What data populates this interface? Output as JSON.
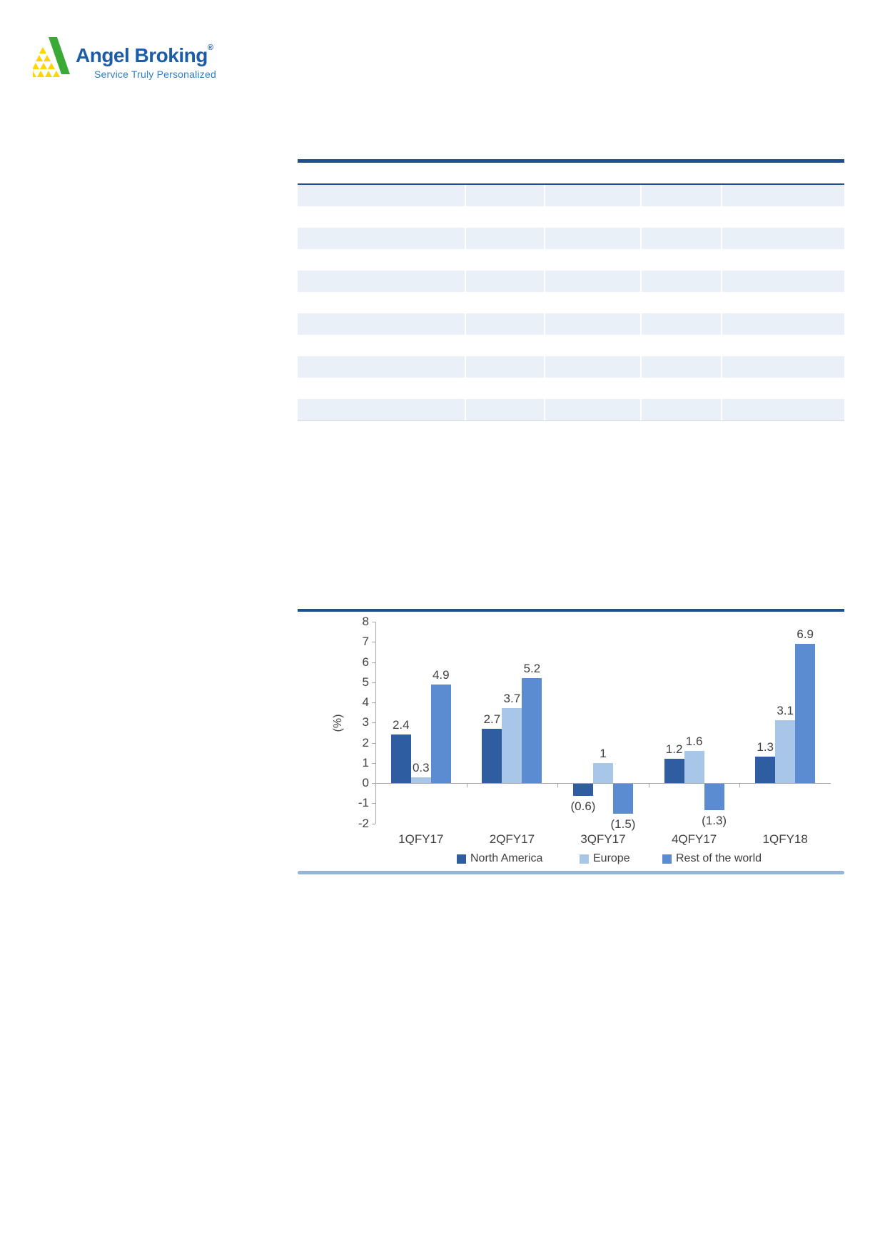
{
  "logo": {
    "brand": "Angel Broking",
    "registered": "®",
    "tagline": "Service Truly Personalized"
  },
  "table": {
    "has_header_row": true,
    "body_row_count": 11,
    "striped_row_count": 6,
    "visible_text": ""
  },
  "colors": {
    "brand_blue": "#1d5ca6",
    "tagline_blue": "#2f7ec0",
    "logo_green": "#3aaa35",
    "logo_yellow": "#ffd403",
    "rule_dark_blue": "#1d4f91",
    "rule_light_blue": "#95b3d7",
    "table_stripe": "#eaf0f7",
    "axis_gray": "#a6a6a6",
    "chart_text": "#404040",
    "series_north_america": "#2e5da1",
    "series_europe": "#a8c6e8",
    "series_rest_of_world": "#5b8bd0"
  },
  "chart_data": {
    "type": "bar",
    "categories": [
      "1QFY17",
      "2QFY17",
      "3QFY17",
      "4QFY17",
      "1QFY18"
    ],
    "series": [
      {
        "name": "North America",
        "color": "#2e5da1",
        "values": [
          2.4,
          2.7,
          -0.6,
          1.2,
          1.3
        ]
      },
      {
        "name": "Europe",
        "color": "#a8c6e8",
        "values": [
          0.3,
          3.7,
          1.0,
          1.6,
          3.1
        ]
      },
      {
        "name": "Rest of the world",
        "color": "#5b8bd0",
        "values": [
          4.9,
          5.2,
          -1.5,
          -1.3,
          6.9
        ]
      }
    ],
    "data_labels": [
      [
        "2.4",
        "0.3",
        "4.9"
      ],
      [
        "2.7",
        "3.7",
        "5.2"
      ],
      [
        "(0.6)",
        "1",
        "(1.5)"
      ],
      [
        "1.2",
        "1.6",
        "(1.3)"
      ],
      [
        "1.3",
        "3.1",
        "6.9"
      ]
    ],
    "ylabel": "(%)",
    "ylim": [
      -2,
      8
    ],
    "yticks": [
      8,
      7,
      6,
      5,
      4,
      3,
      2,
      1,
      0,
      -1,
      -2
    ],
    "grid": false,
    "legend_position": "bottom"
  }
}
